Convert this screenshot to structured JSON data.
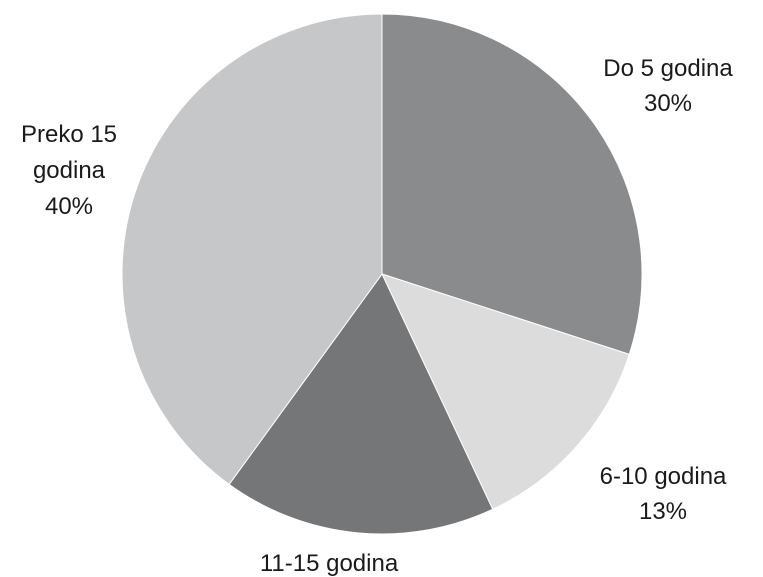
{
  "chart_data": {
    "type": "pie",
    "slices": [
      {
        "label": "Do 5 godina",
        "value": 30,
        "value_label": "30%",
        "color": "#8a8b8d"
      },
      {
        "label": "6-10 godina",
        "value": 13,
        "value_label": "13%",
        "color": "#dcdcdd"
      },
      {
        "label": "11-15 godina",
        "value": 17,
        "value_label": "",
        "color": "#757678"
      },
      {
        "label": "Preko 15 godina",
        "value": 40,
        "value_label": "40%",
        "color": "#c6c7c9"
      }
    ],
    "label_lines": {
      "slice0": [
        "Do 5 godina",
        "30%"
      ],
      "slice1": [
        "6-10 godina",
        "13%"
      ],
      "slice2": [
        "11-15 godina"
      ],
      "slice3": [
        "Preko 15",
        "godina",
        "40%"
      ]
    }
  }
}
